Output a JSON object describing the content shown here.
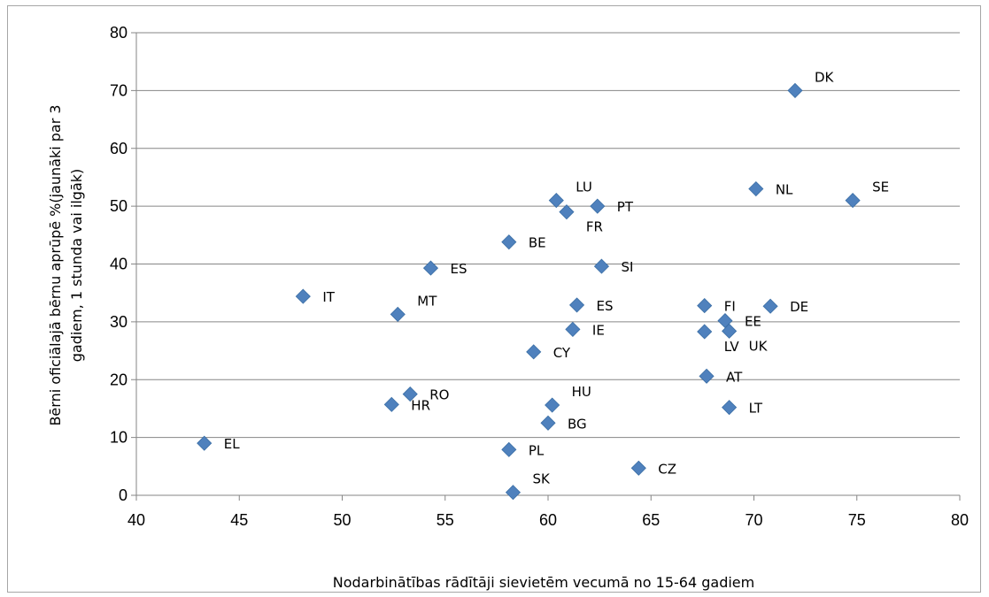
{
  "chart_data": {
    "type": "scatter",
    "xlabel": "Nodarbinātības rādītāji sievietēm vecumā no 15-64 gadiem",
    "ylabel_lines": [
      "Bērni oficiālajā bērnu aprūpē  %(jaunāki par 3",
      "gadiem,   1 stunda vai ilgāk)"
    ],
    "xlim": [
      40,
      80
    ],
    "ylim": [
      0,
      80
    ],
    "x_ticks": [
      40,
      45,
      50,
      55,
      60,
      65,
      70,
      75,
      80
    ],
    "y_ticks": [
      0,
      10,
      20,
      30,
      40,
      50,
      60,
      70,
      80
    ],
    "grid": "horizontal",
    "marker_color": "#4f81bd",
    "points": [
      {
        "label": "DK",
        "x": 72.0,
        "y": 70.0,
        "label_pos": "right-up"
      },
      {
        "label": "NL",
        "x": 70.1,
        "y": 53.0,
        "label_pos": "right"
      },
      {
        "label": "SE",
        "x": 74.8,
        "y": 51.0,
        "label_pos": "right-up"
      },
      {
        "label": "LU",
        "x": 60.4,
        "y": 51.0,
        "label_pos": "right-up"
      },
      {
        "label": "FR",
        "x": 60.9,
        "y": 49.0,
        "label_pos": "right-down"
      },
      {
        "label": "PT",
        "x": 62.4,
        "y": 50.0,
        "label_pos": "right"
      },
      {
        "label": "BE",
        "x": 58.1,
        "y": 43.8,
        "label_pos": "right"
      },
      {
        "label": "SI",
        "x": 62.6,
        "y": 39.6,
        "label_pos": "right"
      },
      {
        "label": "ES",
        "x": 54.3,
        "y": 39.3,
        "label_pos": "right"
      },
      {
        "label": "IT",
        "x": 48.1,
        "y": 34.4,
        "label_pos": "right"
      },
      {
        "label": "MT",
        "x": 52.7,
        "y": 31.3,
        "label_pos": "right-up"
      },
      {
        "label": "ES",
        "x": 61.4,
        "y": 32.9,
        "label_pos": "right"
      },
      {
        "label": "FI",
        "x": 67.6,
        "y": 32.8,
        "label_pos": "right"
      },
      {
        "label": "DE",
        "x": 70.8,
        "y": 32.7,
        "label_pos": "right"
      },
      {
        "label": "EE",
        "x": 68.6,
        "y": 30.2,
        "label_pos": "right"
      },
      {
        "label": "IE",
        "x": 61.2,
        "y": 28.7,
        "label_pos": "right"
      },
      {
        "label": "LV",
        "x": 67.6,
        "y": 28.3,
        "label_pos": "right-down"
      },
      {
        "label": "UK",
        "x": 68.8,
        "y": 28.4,
        "label_pos": "right-down"
      },
      {
        "label": "CY",
        "x": 59.3,
        "y": 24.8,
        "label_pos": "right"
      },
      {
        "label": "AT",
        "x": 67.7,
        "y": 20.6,
        "label_pos": "right"
      },
      {
        "label": "RO",
        "x": 53.3,
        "y": 17.5,
        "label_pos": "right"
      },
      {
        "label": "HR",
        "x": 52.4,
        "y": 15.7,
        "label_pos": "right"
      },
      {
        "label": "HU",
        "x": 60.2,
        "y": 15.6,
        "label_pos": "right-up"
      },
      {
        "label": "LT",
        "x": 68.8,
        "y": 15.2,
        "label_pos": "right"
      },
      {
        "label": "BG",
        "x": 60.0,
        "y": 12.5,
        "label_pos": "right"
      },
      {
        "label": "EL",
        "x": 43.3,
        "y": 9.0,
        "label_pos": "right"
      },
      {
        "label": "PL",
        "x": 58.1,
        "y": 7.9,
        "label_pos": "right"
      },
      {
        "label": "CZ",
        "x": 64.4,
        "y": 4.7,
        "label_pos": "right"
      },
      {
        "label": "SK",
        "x": 58.3,
        "y": 0.5,
        "label_pos": "right-up"
      }
    ]
  }
}
